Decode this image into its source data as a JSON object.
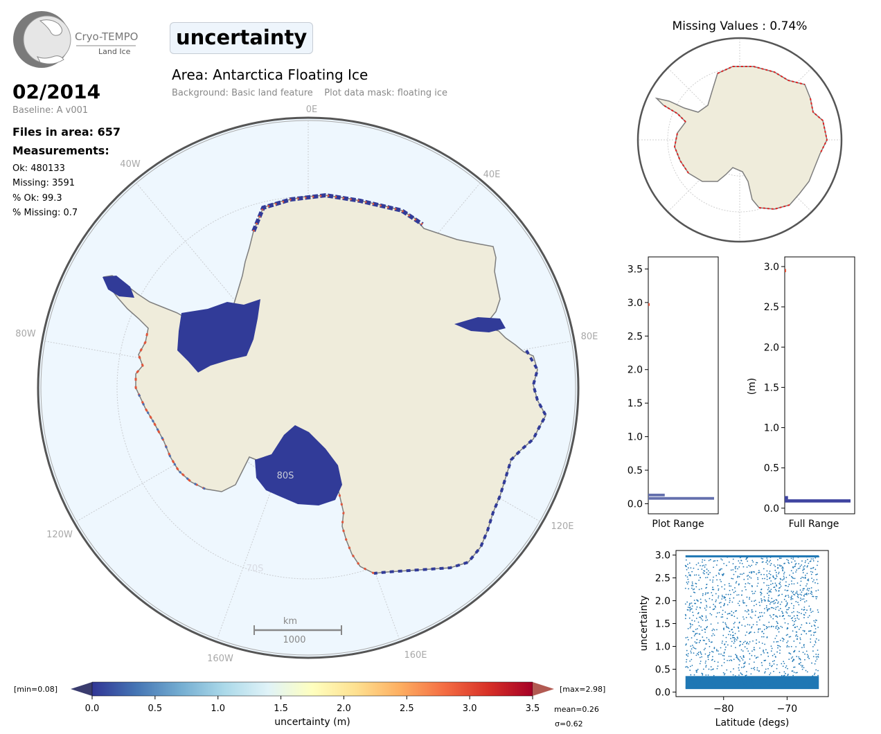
{
  "header": {
    "logo": {
      "name": "Cryo-TEMPO",
      "subtitle": "Land Ice"
    },
    "parameter_title": "uncertainty",
    "area": "Area: Antarctica Floating Ice",
    "background": "Background: Basic land feature",
    "mask": "Plot data mask: floating ice"
  },
  "stats": {
    "date": "02/2014",
    "baseline": "Baseline: A v001",
    "files": "Files in area: 657",
    "measurements_label": "Measurements:",
    "ok": "Ok: 480133",
    "missing": "Missing: 3591",
    "pct_ok": "% Ok: 99.3",
    "pct_missing": "% Missing: 0.7"
  },
  "map": {
    "lon_labels": [
      "0E",
      "40E",
      "80E",
      "120E",
      "160E",
      "160W",
      "120W",
      "80W",
      "40W"
    ],
    "lat_labels": [
      "80S",
      "70S"
    ],
    "scale_unit": "km",
    "scale_value": "1000",
    "colors": {
      "ocean": "#eef7fe",
      "land": "#efecdb",
      "coast": "#7d7d7d",
      "ice_blue": "#313b98",
      "ice_red": "#e2553a"
    }
  },
  "inset": {
    "title": "Missing Values : 0.74%"
  },
  "colorbar": {
    "min_label": "[min=0.08]",
    "max_label": "[max=2.98]",
    "ticks": [
      "0.0",
      "0.5",
      "1.0",
      "1.5",
      "2.0",
      "2.5",
      "3.0",
      "3.5"
    ],
    "label": "uncertainty (m)",
    "mean": "mean=0.26",
    "sigma": "σ=0.62",
    "colormap": [
      "#313695",
      "#4575b4",
      "#74add1",
      "#abd9e9",
      "#e0f3f8",
      "#ffffbf",
      "#fee090",
      "#fdae61",
      "#f46d43",
      "#d73027",
      "#a50026"
    ]
  },
  "chart_data": [
    {
      "type": "bar",
      "name": "histogram-plot-range",
      "orientation": "horizontal",
      "xlabel": "Plot Range",
      "ylabel": "",
      "ylim": [
        -0.15,
        3.68
      ],
      "yticks": [
        0.0,
        0.5,
        1.0,
        1.5,
        2.0,
        2.5,
        3.0,
        3.5
      ],
      "bins": [
        {
          "y": 0.08,
          "count": 1.0
        },
        {
          "y": 0.13,
          "count": 0.25
        },
        {
          "y": 2.97,
          "count": 0.01
        }
      ]
    },
    {
      "type": "bar",
      "name": "histogram-full-range",
      "orientation": "horizontal",
      "xlabel": "Full Range",
      "ylabel": "(m)",
      "ylim": [
        -0.07,
        3.12
      ],
      "yticks": [
        0.0,
        0.5,
        1.0,
        1.5,
        2.0,
        2.5,
        3.0
      ],
      "bins": [
        {
          "y": 0.09,
          "count": 1.0
        },
        {
          "y": 0.13,
          "count": 0.05
        },
        {
          "y": 2.95,
          "count": 0.01
        }
      ]
    },
    {
      "type": "scatter",
      "name": "latitude-scatter",
      "xlabel": "Latitude (degs)",
      "ylabel": "uncertainty",
      "xlim": [
        -87.5,
        -63.5
      ],
      "ylim": [
        -0.1,
        3.1
      ],
      "xticks": [
        -80,
        -70
      ],
      "yticks": [
        0.0,
        0.5,
        1.0,
        1.5,
        2.0,
        2.5,
        3.0
      ],
      "x_range": [
        -86,
        -65
      ],
      "y_range": [
        0.08,
        2.98
      ],
      "color": "#1f77b4"
    }
  ]
}
